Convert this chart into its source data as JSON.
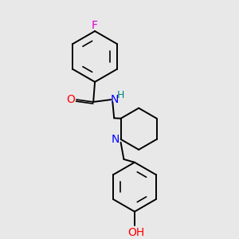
{
  "bg_color": "#e8e8e8",
  "bond_color": "#000000",
  "atom_colors": {
    "F": "#e000e0",
    "O": "#ff0000",
    "N": "#0000ff",
    "H_amide": "#008080",
    "H_hydroxy": "#ff0000"
  },
  "figsize": [
    3.0,
    3.0
  ],
  "dpi": 100,
  "lw": 1.4,
  "lw_double": 1.2,
  "font_size": 9
}
